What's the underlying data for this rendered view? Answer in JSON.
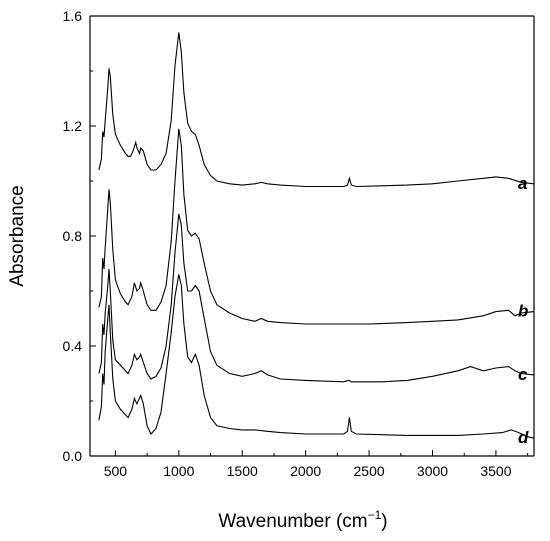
{
  "chart_data": {
    "type": "line",
    "xlabel": "Wavenumber (cm",
    "xlabel_unit_exponent": "−1",
    "xlabel_suffix": ")",
    "ylabel": "Absorbance",
    "xlim": [
      300,
      3800
    ],
    "ylim": [
      0.0,
      1.6
    ],
    "xticks": [
      500,
      1000,
      1500,
      2000,
      2500,
      3000,
      3500
    ],
    "yticks": [
      "0.0",
      "0.4",
      "0.8",
      "1.2",
      "1.6"
    ],
    "grid": false,
    "legend": "labels at right end of each curve",
    "series": [
      {
        "name": "a",
        "points": [
          [
            370,
            1.04
          ],
          [
            390,
            1.08
          ],
          [
            400,
            1.18
          ],
          [
            410,
            1.16
          ],
          [
            420,
            1.22
          ],
          [
            440,
            1.34
          ],
          [
            450,
            1.41
          ],
          [
            460,
            1.38
          ],
          [
            480,
            1.24
          ],
          [
            500,
            1.17
          ],
          [
            540,
            1.13
          ],
          [
            580,
            1.1
          ],
          [
            600,
            1.09
          ],
          [
            620,
            1.09
          ],
          [
            640,
            1.11
          ],
          [
            660,
            1.14
          ],
          [
            670,
            1.12
          ],
          [
            690,
            1.1
          ],
          [
            700,
            1.12
          ],
          [
            720,
            1.11
          ],
          [
            750,
            1.06
          ],
          [
            780,
            1.04
          ],
          [
            820,
            1.04
          ],
          [
            860,
            1.06
          ],
          [
            900,
            1.1
          ],
          [
            940,
            1.22
          ],
          [
            970,
            1.42
          ],
          [
            1000,
            1.54
          ],
          [
            1020,
            1.47
          ],
          [
            1040,
            1.32
          ],
          [
            1070,
            1.21
          ],
          [
            1100,
            1.18
          ],
          [
            1130,
            1.17
          ],
          [
            1160,
            1.13
          ],
          [
            1200,
            1.06
          ],
          [
            1250,
            1.02
          ],
          [
            1300,
            1.0
          ],
          [
            1400,
            0.99
          ],
          [
            1500,
            0.985
          ],
          [
            1600,
            0.99
          ],
          [
            1650,
            0.995
          ],
          [
            1700,
            0.99
          ],
          [
            1800,
            0.985
          ],
          [
            2000,
            0.98
          ],
          [
            2300,
            0.98
          ],
          [
            2330,
            0.985
          ],
          [
            2345,
            1.01
          ],
          [
            2360,
            0.985
          ],
          [
            2400,
            0.98
          ],
          [
            2800,
            0.985
          ],
          [
            3000,
            0.99
          ],
          [
            3200,
            1.0
          ],
          [
            3400,
            1.01
          ],
          [
            3500,
            1.015
          ],
          [
            3600,
            1.01
          ],
          [
            3700,
            0.995
          ],
          [
            3800,
            0.99
          ]
        ]
      },
      {
        "name": "b",
        "points": [
          [
            370,
            0.54
          ],
          [
            390,
            0.58
          ],
          [
            400,
            0.72
          ],
          [
            410,
            0.68
          ],
          [
            420,
            0.76
          ],
          [
            440,
            0.9
          ],
          [
            450,
            0.97
          ],
          [
            460,
            0.92
          ],
          [
            480,
            0.75
          ],
          [
            500,
            0.64
          ],
          [
            540,
            0.59
          ],
          [
            580,
            0.56
          ],
          [
            600,
            0.55
          ],
          [
            630,
            0.58
          ],
          [
            650,
            0.63
          ],
          [
            670,
            0.6
          ],
          [
            690,
            0.61
          ],
          [
            700,
            0.63
          ],
          [
            720,
            0.6
          ],
          [
            750,
            0.55
          ],
          [
            780,
            0.53
          ],
          [
            820,
            0.53
          ],
          [
            860,
            0.56
          ],
          [
            900,
            0.62
          ],
          [
            940,
            0.78
          ],
          [
            970,
            1.0
          ],
          [
            1000,
            1.19
          ],
          [
            1020,
            1.13
          ],
          [
            1040,
            0.95
          ],
          [
            1070,
            0.82
          ],
          [
            1100,
            0.8
          ],
          [
            1130,
            0.81
          ],
          [
            1160,
            0.79
          ],
          [
            1200,
            0.7
          ],
          [
            1250,
            0.6
          ],
          [
            1300,
            0.55
          ],
          [
            1400,
            0.52
          ],
          [
            1500,
            0.5
          ],
          [
            1600,
            0.49
          ],
          [
            1650,
            0.5
          ],
          [
            1700,
            0.49
          ],
          [
            1800,
            0.485
          ],
          [
            2000,
            0.48
          ],
          [
            2300,
            0.48
          ],
          [
            2500,
            0.48
          ],
          [
            2800,
            0.485
          ],
          [
            3000,
            0.49
          ],
          [
            3200,
            0.495
          ],
          [
            3400,
            0.51
          ],
          [
            3500,
            0.525
          ],
          [
            3600,
            0.53
          ],
          [
            3650,
            0.51
          ],
          [
            3700,
            0.52
          ],
          [
            3800,
            0.525
          ]
        ]
      },
      {
        "name": "c",
        "points": [
          [
            370,
            0.3
          ],
          [
            390,
            0.34
          ],
          [
            400,
            0.48
          ],
          [
            410,
            0.44
          ],
          [
            420,
            0.52
          ],
          [
            440,
            0.62
          ],
          [
            450,
            0.68
          ],
          [
            460,
            0.6
          ],
          [
            480,
            0.42
          ],
          [
            500,
            0.35
          ],
          [
            540,
            0.33
          ],
          [
            580,
            0.31
          ],
          [
            600,
            0.3
          ],
          [
            630,
            0.33
          ],
          [
            650,
            0.37
          ],
          [
            670,
            0.35
          ],
          [
            690,
            0.36
          ],
          [
            700,
            0.37
          ],
          [
            720,
            0.34
          ],
          [
            750,
            0.3
          ],
          [
            780,
            0.28
          ],
          [
            820,
            0.29
          ],
          [
            860,
            0.32
          ],
          [
            900,
            0.4
          ],
          [
            940,
            0.55
          ],
          [
            970,
            0.74
          ],
          [
            1000,
            0.88
          ],
          [
            1020,
            0.84
          ],
          [
            1040,
            0.7
          ],
          [
            1070,
            0.6
          ],
          [
            1100,
            0.6
          ],
          [
            1130,
            0.62
          ],
          [
            1160,
            0.6
          ],
          [
            1200,
            0.5
          ],
          [
            1250,
            0.38
          ],
          [
            1300,
            0.33
          ],
          [
            1400,
            0.3
          ],
          [
            1500,
            0.29
          ],
          [
            1600,
            0.3
          ],
          [
            1650,
            0.31
          ],
          [
            1700,
            0.295
          ],
          [
            1800,
            0.28
          ],
          [
            2000,
            0.275
          ],
          [
            2300,
            0.27
          ],
          [
            2340,
            0.275
          ],
          [
            2360,
            0.27
          ],
          [
            2600,
            0.27
          ],
          [
            2800,
            0.275
          ],
          [
            3000,
            0.29
          ],
          [
            3200,
            0.31
          ],
          [
            3300,
            0.325
          ],
          [
            3400,
            0.31
          ],
          [
            3500,
            0.32
          ],
          [
            3600,
            0.325
          ],
          [
            3650,
            0.31
          ],
          [
            3700,
            0.3
          ],
          [
            3800,
            0.295
          ]
        ]
      },
      {
        "name": "d",
        "points": [
          [
            370,
            0.13
          ],
          [
            390,
            0.18
          ],
          [
            400,
            0.3
          ],
          [
            410,
            0.26
          ],
          [
            420,
            0.38
          ],
          [
            440,
            0.5
          ],
          [
            450,
            0.55
          ],
          [
            460,
            0.45
          ],
          [
            480,
            0.28
          ],
          [
            500,
            0.2
          ],
          [
            540,
            0.17
          ],
          [
            580,
            0.15
          ],
          [
            600,
            0.14
          ],
          [
            630,
            0.17
          ],
          [
            650,
            0.21
          ],
          [
            670,
            0.19
          ],
          [
            690,
            0.21
          ],
          [
            700,
            0.22
          ],
          [
            720,
            0.19
          ],
          [
            750,
            0.11
          ],
          [
            780,
            0.08
          ],
          [
            820,
            0.1
          ],
          [
            860,
            0.16
          ],
          [
            900,
            0.3
          ],
          [
            940,
            0.45
          ],
          [
            970,
            0.58
          ],
          [
            1000,
            0.66
          ],
          [
            1020,
            0.62
          ],
          [
            1040,
            0.48
          ],
          [
            1070,
            0.36
          ],
          [
            1100,
            0.34
          ],
          [
            1130,
            0.37
          ],
          [
            1160,
            0.33
          ],
          [
            1200,
            0.22
          ],
          [
            1250,
            0.14
          ],
          [
            1300,
            0.11
          ],
          [
            1400,
            0.1
          ],
          [
            1500,
            0.095
          ],
          [
            1600,
            0.095
          ],
          [
            1700,
            0.09
          ],
          [
            1800,
            0.085
          ],
          [
            2000,
            0.08
          ],
          [
            2300,
            0.08
          ],
          [
            2330,
            0.09
          ],
          [
            2345,
            0.14
          ],
          [
            2360,
            0.09
          ],
          [
            2400,
            0.08
          ],
          [
            2800,
            0.075
          ],
          [
            3000,
            0.075
          ],
          [
            3200,
            0.075
          ],
          [
            3400,
            0.08
          ],
          [
            3550,
            0.085
          ],
          [
            3620,
            0.095
          ],
          [
            3680,
            0.085
          ],
          [
            3750,
            0.07
          ],
          [
            3800,
            0.065
          ]
        ]
      }
    ]
  }
}
